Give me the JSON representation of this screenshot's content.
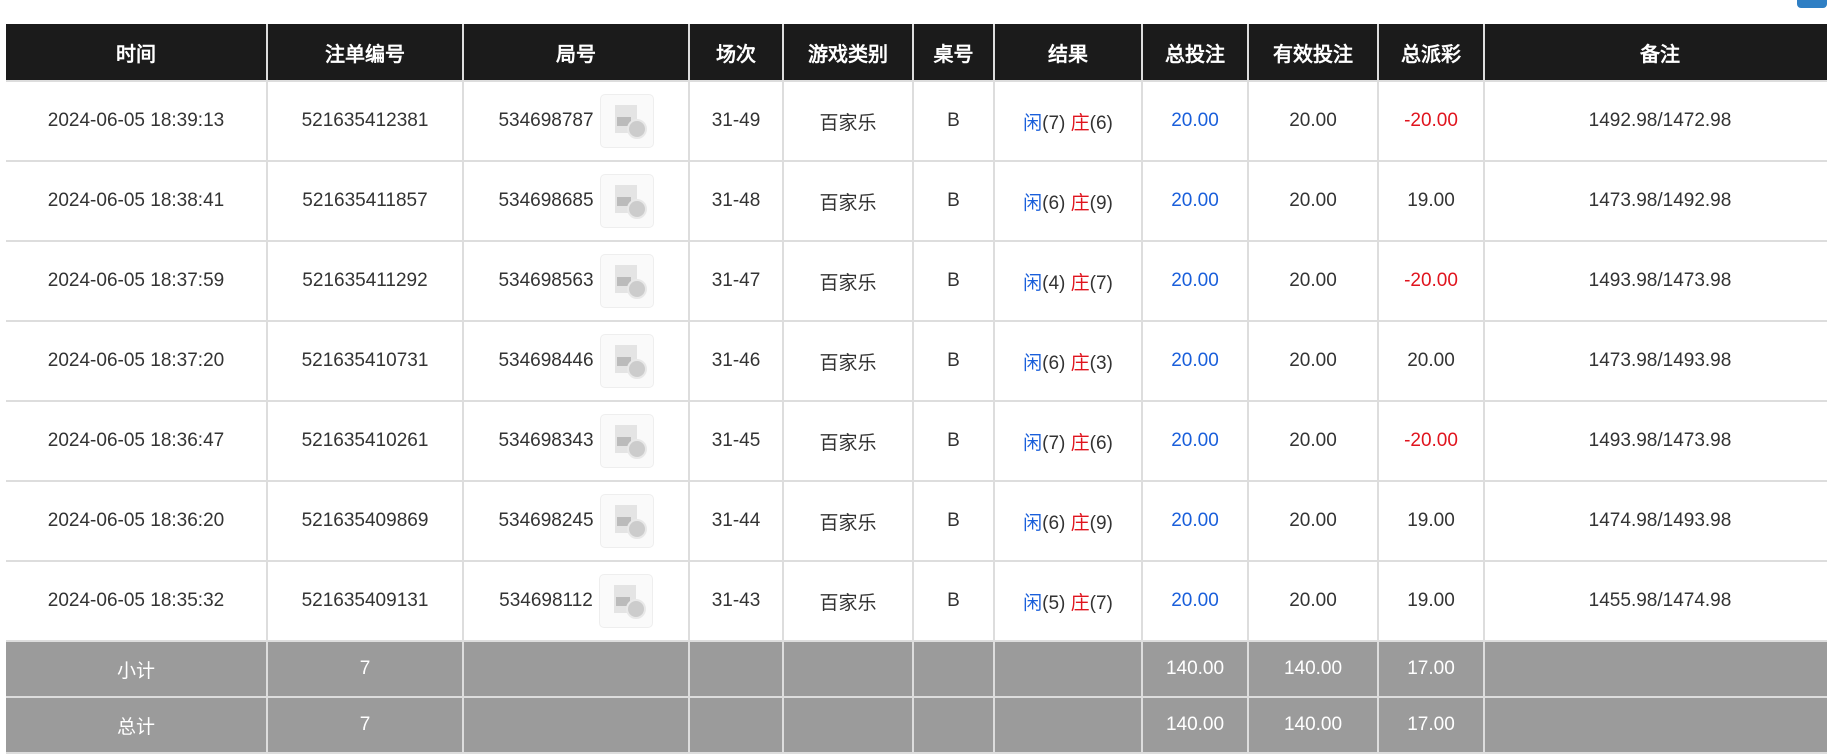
{
  "headers": [
    "时间",
    "注单编号",
    "局号",
    "场次",
    "游戏类别",
    "桌号",
    "结果",
    "总投注",
    "有效投注",
    "总派彩",
    "备注"
  ],
  "rows": [
    {
      "time": "2024-06-05 18:39:13",
      "bet_id": "521635412381",
      "round": "534698787",
      "session": "31-49",
      "game": "百家乐",
      "table": "B",
      "player": "闲",
      "player_pts": "(7)",
      "banker": "庄",
      "banker_pts": "(6)",
      "total_bet": "20.00",
      "valid_bet": "20.00",
      "payout": "-20.00",
      "payout_negative": true,
      "note": "1492.98/1472.98"
    },
    {
      "time": "2024-06-05 18:38:41",
      "bet_id": "521635411857",
      "round": "534698685",
      "session": "31-48",
      "game": "百家乐",
      "table": "B",
      "player": "闲",
      "player_pts": "(6)",
      "banker": "庄",
      "banker_pts": "(9)",
      "total_bet": "20.00",
      "valid_bet": "20.00",
      "payout": "19.00",
      "payout_negative": false,
      "note": "1473.98/1492.98"
    },
    {
      "time": "2024-06-05 18:37:59",
      "bet_id": "521635411292",
      "round": "534698563",
      "session": "31-47",
      "game": "百家乐",
      "table": "B",
      "player": "闲",
      "player_pts": "(4)",
      "banker": "庄",
      "banker_pts": "(7)",
      "total_bet": "20.00",
      "valid_bet": "20.00",
      "payout": "-20.00",
      "payout_negative": true,
      "note": "1493.98/1473.98"
    },
    {
      "time": "2024-06-05 18:37:20",
      "bet_id": "521635410731",
      "round": "534698446",
      "session": "31-46",
      "game": "百家乐",
      "table": "B",
      "player": "闲",
      "player_pts": "(6)",
      "banker": "庄",
      "banker_pts": "(3)",
      "total_bet": "20.00",
      "valid_bet": "20.00",
      "payout": "20.00",
      "payout_negative": false,
      "note": "1473.98/1493.98"
    },
    {
      "time": "2024-06-05 18:36:47",
      "bet_id": "521635410261",
      "round": "534698343",
      "session": "31-45",
      "game": "百家乐",
      "table": "B",
      "player": "闲",
      "player_pts": "(7)",
      "banker": "庄",
      "banker_pts": "(6)",
      "total_bet": "20.00",
      "valid_bet": "20.00",
      "payout": "-20.00",
      "payout_negative": true,
      "note": "1493.98/1473.98"
    },
    {
      "time": "2024-06-05 18:36:20",
      "bet_id": "521635409869",
      "round": "534698245",
      "session": "31-44",
      "game": "百家乐",
      "table": "B",
      "player": "闲",
      "player_pts": "(6)",
      "banker": "庄",
      "banker_pts": "(9)",
      "total_bet": "20.00",
      "valid_bet": "20.00",
      "payout": "19.00",
      "payout_negative": false,
      "note": "1474.98/1493.98"
    },
    {
      "time": "2024-06-05 18:35:32",
      "bet_id": "521635409131",
      "round": "534698112",
      "session": "31-43",
      "game": "百家乐",
      "table": "B",
      "player": "闲",
      "player_pts": "(5)",
      "banker": "庄",
      "banker_pts": "(7)",
      "total_bet": "20.00",
      "valid_bet": "20.00",
      "payout": "19.00",
      "payout_negative": false,
      "note": "1455.98/1474.98"
    }
  ],
  "subtotal": {
    "label": "小计",
    "count": "7",
    "total_bet": "140.00",
    "valid_bet": "140.00",
    "payout": "17.00"
  },
  "total": {
    "label": "总计",
    "count": "7",
    "total_bet": "140.00",
    "valid_bet": "140.00",
    "payout": "17.00"
  },
  "colors": {
    "blue": "#1a5fdb",
    "red": "#e0141e",
    "header_bg": "#1b1b1b",
    "summary_bg": "#9b9b9b"
  }
}
